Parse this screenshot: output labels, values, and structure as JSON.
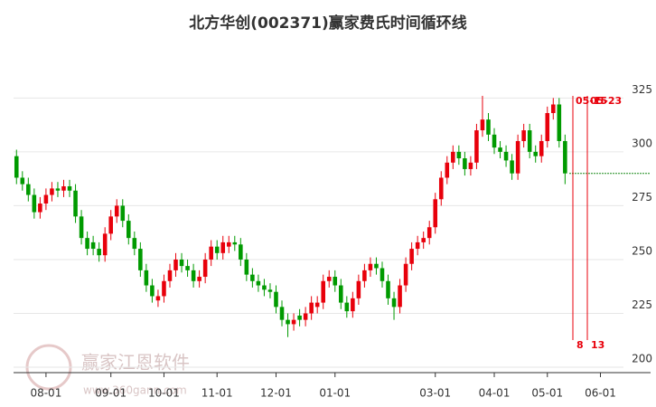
{
  "chart_data": {
    "type": "candlestick",
    "title": "北方华创(002371)赢家费氏时间循环线",
    "watermark": [
      "赢家江恩软件",
      "www.360gann.com"
    ],
    "categories": [
      null,
      null,
      null,
      null,
      null,
      "08-01",
      null,
      null,
      null,
      null,
      null,
      null,
      null,
      null,
      null,
      null,
      "09-01",
      null,
      null,
      null,
      null,
      null,
      null,
      null,
      null,
      "10-01",
      null,
      null,
      null,
      null,
      null,
      null,
      null,
      null,
      "11-01",
      null,
      null,
      null,
      null,
      null,
      null,
      null,
      null,
      null,
      "12-01",
      null,
      null,
      null,
      null,
      null,
      null,
      null,
      null,
      null,
      "01-01",
      null,
      null,
      null,
      null,
      null,
      null,
      null,
      null,
      null,
      null,
      null,
      null,
      null,
      null,
      null,
      null,
      "03-01",
      null,
      null,
      null,
      null,
      null,
      null,
      null,
      null,
      null,
      "04-01",
      null,
      null,
      null,
      null,
      null,
      null,
      null,
      null,
      "05-01",
      null,
      null,
      null,
      null,
      null,
      null,
      null,
      null,
      "06-01",
      null,
      null,
      null,
      null,
      null,
      null,
      null,
      null
    ],
    "open": [
      298,
      288,
      285,
      280,
      272,
      276,
      280,
      283,
      282,
      284,
      282,
      270,
      260,
      258,
      255,
      252,
      262,
      270,
      275,
      268,
      260,
      255,
      245,
      238,
      231,
      233,
      240,
      245,
      250,
      247,
      245,
      240,
      242,
      250,
      256,
      253,
      256,
      258,
      257,
      250,
      243,
      240,
      238,
      236,
      235,
      228,
      222,
      220,
      224,
      222,
      225,
      228,
      230,
      240,
      242,
      238,
      230,
      226,
      232,
      240,
      245,
      248,
      246,
      240,
      232,
      228,
      238,
      248,
      255,
      258,
      260,
      265,
      278,
      288,
      295,
      300,
      297,
      292,
      295,
      310,
      315,
      308,
      302,
      300,
      296,
      290,
      305,
      310,
      300,
      298,
      305,
      318,
      322,
      305,
      null,
      null,
      null,
      null,
      null,
      null,
      null,
      null,
      null,
      null,
      null,
      null,
      null,
      null
    ],
    "close": [
      288,
      285,
      280,
      272,
      276,
      280,
      283,
      282,
      284,
      282,
      270,
      260,
      255,
      255,
      252,
      262,
      270,
      275,
      268,
      260,
      255,
      245,
      238,
      233,
      233,
      240,
      245,
      250,
      247,
      245,
      240,
      242,
      250,
      256,
      253,
      258,
      258,
      257,
      250,
      243,
      240,
      238,
      236,
      235,
      228,
      222,
      220,
      222,
      222,
      225,
      230,
      230,
      240,
      242,
      238,
      230,
      226,
      232,
      240,
      245,
      248,
      246,
      240,
      232,
      228,
      238,
      248,
      255,
      258,
      260,
      265,
      278,
      288,
      295,
      300,
      297,
      292,
      295,
      310,
      315,
      308,
      302,
      300,
      296,
      290,
      305,
      310,
      300,
      298,
      305,
      318,
      322,
      305,
      290,
      null,
      null,
      null,
      null,
      null,
      null,
      null,
      null,
      null,
      null,
      null,
      null,
      null,
      null
    ],
    "high": [
      301,
      291,
      288,
      283,
      279,
      283,
      286,
      286,
      287,
      287,
      285,
      273,
      263,
      261,
      258,
      265,
      273,
      278,
      278,
      271,
      263,
      258,
      248,
      241,
      236,
      243,
      248,
      253,
      253,
      250,
      248,
      245,
      253,
      259,
      259,
      261,
      261,
      261,
      260,
      253,
      246,
      243,
      241,
      239,
      238,
      231,
      225,
      225,
      227,
      228,
      233,
      233,
      243,
      245,
      245,
      241,
      233,
      235,
      243,
      248,
      251,
      251,
      249,
      243,
      235,
      241,
      251,
      258,
      261,
      263,
      268,
      281,
      291,
      298,
      303,
      303,
      300,
      298,
      313,
      326,
      318,
      311,
      305,
      303,
      299,
      308,
      313,
      313,
      303,
      308,
      321,
      325,
      325,
      308,
      null,
      null,
      null,
      null,
      null,
      null,
      null,
      null,
      null,
      null,
      null,
      null,
      null,
      null
    ],
    "low": [
      285,
      282,
      277,
      269,
      269,
      273,
      277,
      279,
      279,
      279,
      267,
      257,
      252,
      252,
      249,
      249,
      259,
      267,
      265,
      257,
      252,
      242,
      235,
      230,
      228,
      230,
      237,
      242,
      244,
      242,
      237,
      237,
      239,
      247,
      250,
      250,
      253,
      254,
      247,
      240,
      237,
      235,
      233,
      232,
      225,
      219,
      214,
      217,
      219,
      219,
      222,
      225,
      227,
      237,
      235,
      227,
      223,
      223,
      229,
      237,
      242,
      243,
      237,
      229,
      222,
      225,
      235,
      245,
      252,
      255,
      257,
      262,
      275,
      285,
      292,
      294,
      289,
      289,
      292,
      307,
      305,
      299,
      297,
      293,
      287,
      287,
      302,
      297,
      295,
      295,
      302,
      315,
      302,
      285,
      null,
      null,
      null,
      null,
      null,
      null,
      null,
      null,
      null,
      null,
      null,
      null,
      null,
      null
    ],
    "up_color": "#e8000b",
    "down_color": "#009a00",
    "ylim": [
      197.5,
      349.5
    ],
    "yticks": [
      200,
      225,
      250,
      275,
      300,
      325
    ],
    "grid": true,
    "ref_line": 290,
    "cycle_lines": [
      {
        "date": "05-15",
        "count": 8
      },
      {
        "date": "05-23",
        "count": 13
      }
    ]
  }
}
